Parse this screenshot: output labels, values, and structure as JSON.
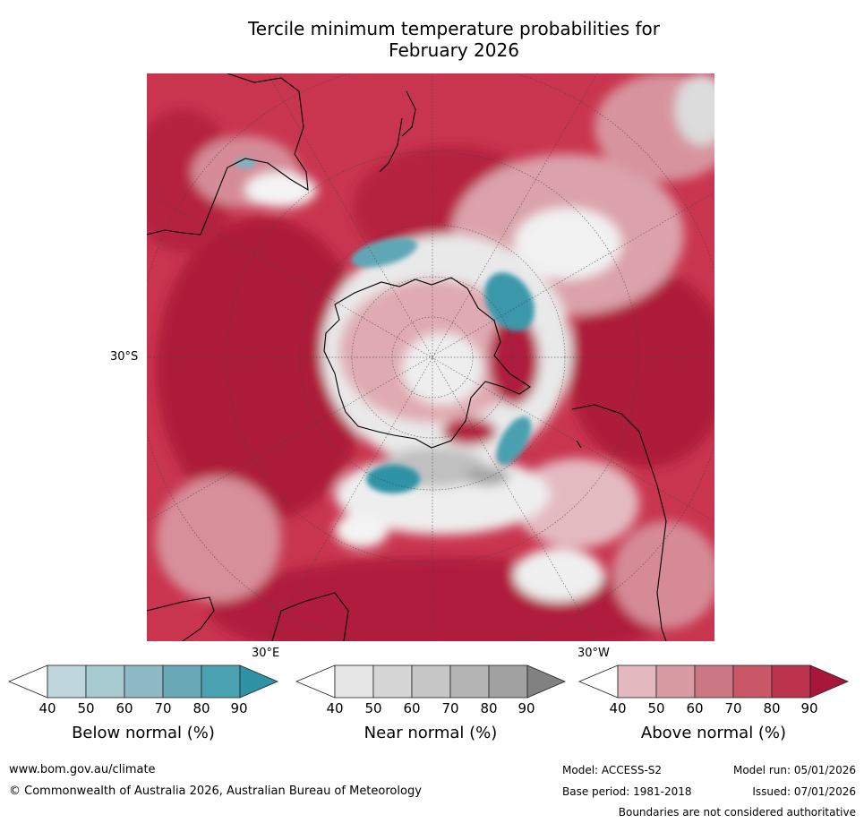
{
  "title_line1": "Tercile minimum temperature probabilities for",
  "title_line2": "February 2026",
  "map": {
    "projection": "south-polar stereographic",
    "lat_label": "30°S",
    "lon_labels": [
      "30°E",
      "30°W"
    ]
  },
  "colorbars": [
    {
      "label": "Below normal (%)",
      "ticks": [
        "40",
        "50",
        "60",
        "70",
        "80",
        "90"
      ],
      "colors": [
        "#ffffff",
        "#bed6dc",
        "#a7c9d0",
        "#8fb9c5",
        "#6aaab8",
        "#4ba2b1",
        "#2f93a6"
      ]
    },
    {
      "label": "Near normal (%)",
      "ticks": [
        "40",
        "50",
        "60",
        "70",
        "80",
        "90"
      ],
      "colors": [
        "#ffffff",
        "#e6e6e6",
        "#d6d6d6",
        "#c6c6c6",
        "#b4b4b4",
        "#a1a1a1",
        "#818181"
      ]
    },
    {
      "label": "Above normal (%)",
      "ticks": [
        "40",
        "50",
        "60",
        "70",
        "80",
        "90"
      ],
      "colors": [
        "#ffffff",
        "#e4b8bf",
        "#d89aa3",
        "#cc7884",
        "#c95768",
        "#bd324d",
        "#a8173a"
      ]
    }
  ],
  "footer": {
    "website": "www.bom.gov.au/climate",
    "copyright": "© Commonwealth of Australia 2026, Australian Bureau of Meteorology",
    "model": "Model: ACCESS-S2",
    "model_run": "Model run: 05/01/2026",
    "base_period": "Base period: 1981-2018",
    "issued": "Issued: 07/01/2026",
    "disclaimer": "Boundaries are not considered authoritative"
  }
}
